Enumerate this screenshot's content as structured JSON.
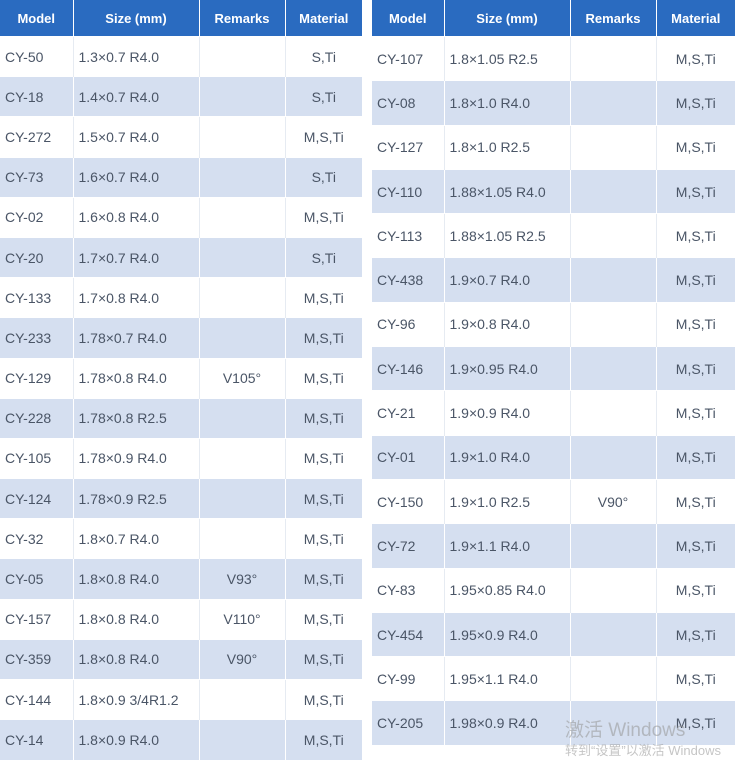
{
  "headers": [
    "Model",
    "Size (mm)",
    "Remarks",
    "Material"
  ],
  "left_rows": [
    [
      "CY-50",
      "1.3×0.7 R4.0",
      "",
      "S,Ti"
    ],
    [
      "CY-18",
      "1.4×0.7 R4.0",
      "",
      "S,Ti"
    ],
    [
      "CY-272",
      "1.5×0.7 R4.0",
      "",
      "M,S,Ti"
    ],
    [
      "CY-73",
      "1.6×0.7 R4.0",
      "",
      "S,Ti"
    ],
    [
      "CY-02",
      "1.6×0.8 R4.0",
      "",
      "M,S,Ti"
    ],
    [
      "CY-20",
      "1.7×0.7 R4.0",
      "",
      "S,Ti"
    ],
    [
      "CY-133",
      "1.7×0.8 R4.0",
      "",
      "M,S,Ti"
    ],
    [
      "CY-233",
      "1.78×0.7 R4.0",
      "",
      "M,S,Ti"
    ],
    [
      "CY-129",
      "1.78×0.8 R4.0",
      "V105°",
      "M,S,Ti"
    ],
    [
      "CY-228",
      "1.78×0.8 R2.5",
      "",
      "M,S,Ti"
    ],
    [
      "CY-105",
      "1.78×0.9 R4.0",
      "",
      "M,S,Ti"
    ],
    [
      "CY-124",
      "1.78×0.9 R2.5",
      "",
      "M,S,Ti"
    ],
    [
      "CY-32",
      "1.8×0.7 R4.0",
      "",
      "M,S,Ti"
    ],
    [
      "CY-05",
      "1.8×0.8 R4.0",
      "V93°",
      "M,S,Ti"
    ],
    [
      "CY-157",
      "1.8×0.8 R4.0",
      "V110°",
      "M,S,Ti"
    ],
    [
      "CY-359",
      "1.8×0.8 R4.0",
      "V90°",
      "M,S,Ti"
    ],
    [
      "CY-144",
      "1.8×0.9 3/4R1.2",
      "",
      "M,S,Ti"
    ],
    [
      "CY-14",
      "1.8×0.9 R4.0",
      "",
      "M,S,Ti"
    ]
  ],
  "right_rows": [
    [
      "CY-107",
      "1.8×1.05 R2.5",
      "",
      "M,S,Ti"
    ],
    [
      "CY-08",
      "1.8×1.0 R4.0",
      "",
      "M,S,Ti"
    ],
    [
      "CY-127",
      "1.8×1.0 R2.5",
      "",
      "M,S,Ti"
    ],
    [
      "CY-110",
      "1.88×1.05 R4.0",
      "",
      "M,S,Ti"
    ],
    [
      "CY-113",
      "1.88×1.05 R2.5",
      "",
      "M,S,Ti"
    ],
    [
      "CY-438",
      "1.9×0.7 R4.0",
      "",
      "M,S,Ti"
    ],
    [
      "CY-96",
      "1.9×0.8 R4.0",
      "",
      "M,S,Ti"
    ],
    [
      "CY-146",
      "1.9×0.95 R4.0",
      "",
      "M,S,Ti"
    ],
    [
      "CY-21",
      "1.9×0.9 R4.0",
      "",
      "M,S,Ti"
    ],
    [
      "CY-01",
      "1.9×1.0 R4.0",
      "",
      "M,S,Ti"
    ],
    [
      "CY-150",
      "1.9×1.0 R2.5",
      "V90°",
      "M,S,Ti"
    ],
    [
      "CY-72",
      "1.9×1.1 R4.0",
      "",
      "M,S,Ti"
    ],
    [
      "CY-83",
      "1.95×0.85 R4.0",
      "",
      "M,S,Ti"
    ],
    [
      "CY-454",
      "1.95×0.9 R4.0",
      "",
      "M,S,Ti"
    ],
    [
      "CY-99",
      "1.95×1.1 R4.0",
      "",
      "M,S,Ti"
    ],
    [
      "CY-205",
      "1.98×0.9 R4.0",
      "",
      "M,S,Ti"
    ]
  ],
  "watermark": {
    "line1": "激活 Windows",
    "line2": "转到“设置”以激活 Windows"
  }
}
